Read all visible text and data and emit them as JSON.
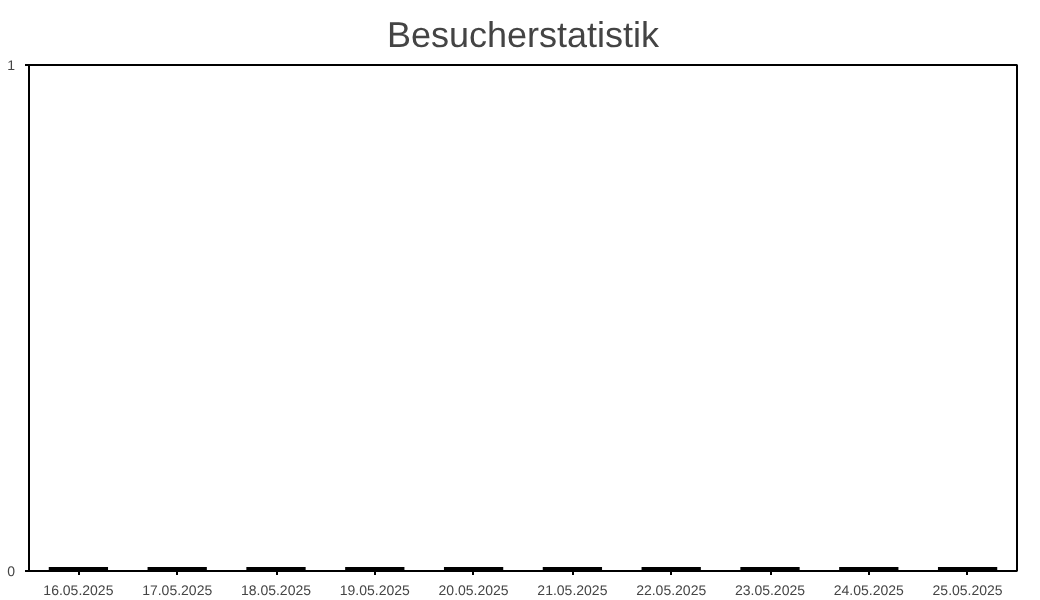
{
  "chart_data": {
    "type": "bar",
    "title": "Besucherstatistik",
    "categories": [
      "16.05.2025",
      "17.05.2025",
      "18.05.2025",
      "19.05.2025",
      "20.05.2025",
      "21.05.2025",
      "22.05.2025",
      "23.05.2025",
      "24.05.2025",
      "25.05.2025"
    ],
    "values": [
      0,
      0,
      0,
      0,
      0,
      0,
      0,
      0,
      0,
      0
    ],
    "color": "#000000",
    "ylim": [
      0,
      1
    ],
    "yticks": [
      0,
      1
    ],
    "grid": false
  }
}
